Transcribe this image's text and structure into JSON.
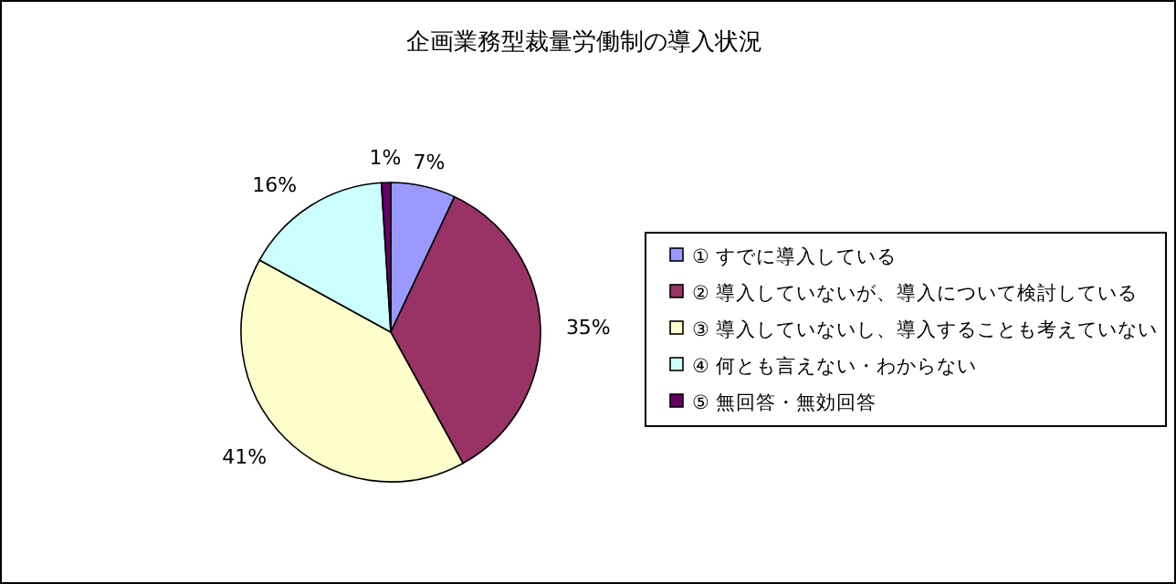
{
  "chart_data": {
    "type": "pie",
    "title": "企画業務型裁量労働制の導入状況",
    "categories": [
      "① すでに導入している",
      "② 導入していないが、導入について検討している",
      "③ 導入していないし、導入することも考えていない",
      "④ 何とも言えない・わからない",
      "⑤ 無回答・無効回答"
    ],
    "values": [
      7,
      35,
      41,
      16,
      1
    ],
    "value_labels": [
      "7%",
      "35%",
      "41%",
      "16%",
      "1%"
    ],
    "colors": [
      "#9999ff",
      "#993366",
      "#ffffcc",
      "#ccffff",
      "#660066"
    ],
    "legend": "right"
  }
}
